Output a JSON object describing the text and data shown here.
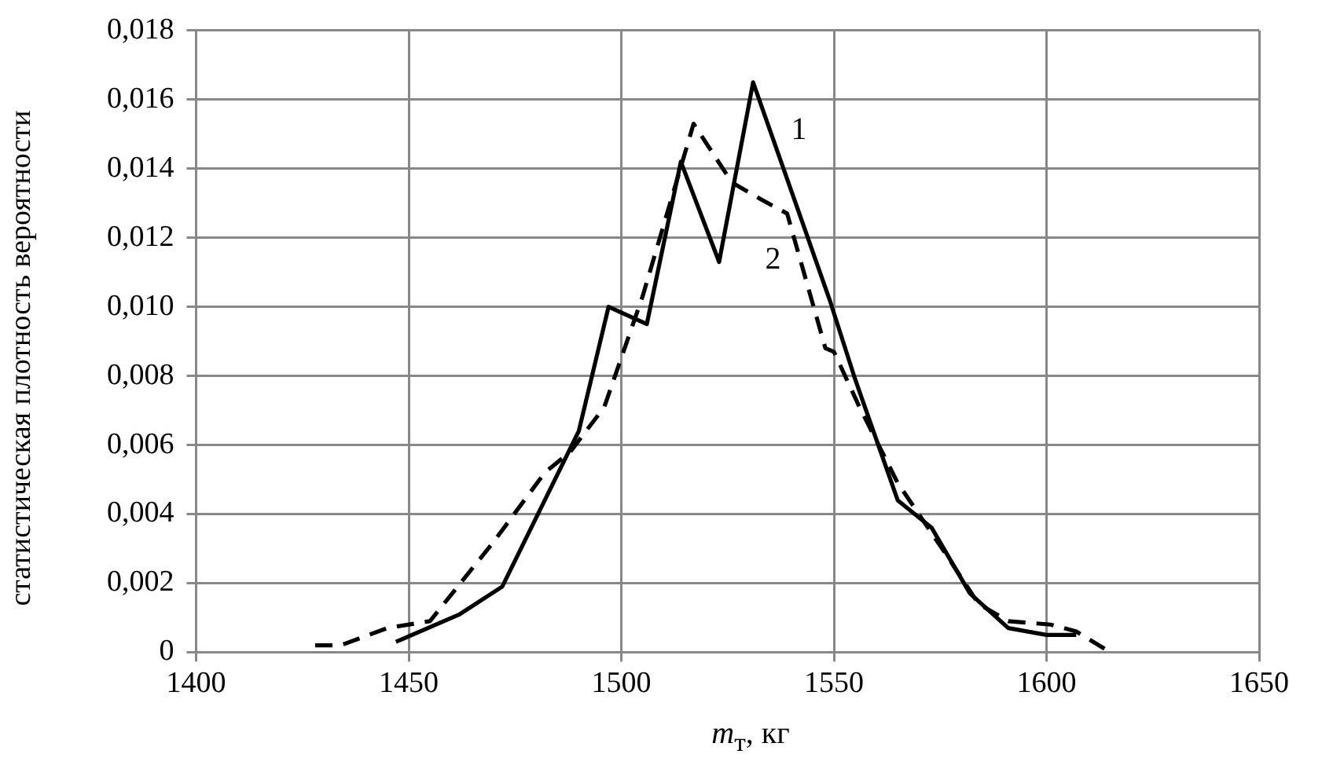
{
  "chart_data": {
    "type": "line",
    "xlabel": "m$_{т}$, кг",
    "ylabel": "статистическая плотность вероятности",
    "xlim": [
      1400,
      1650
    ],
    "xticks": [
      1400,
      1450,
      1500,
      1550,
      1600,
      1650
    ],
    "ylim": [
      0,
      0.018
    ],
    "yticks": [
      0,
      {
        "value": 0.002,
        "label": "0,002"
      },
      {
        "value": 0.004,
        "label": "0,004"
      },
      {
        "value": 0.006,
        "label": "0,006"
      },
      {
        "value": 0.008,
        "label": "0,008"
      },
      {
        "value": 0.01,
        "label": "0,010"
      },
      {
        "value": 0.012,
        "label": "0,012"
      },
      {
        "value": 0.014,
        "label": "0,014"
      },
      {
        "value": 0.016,
        "label": "0,016"
      },
      {
        "value": 0.018,
        "label": "0,018"
      }
    ],
    "grid": true,
    "legend": false,
    "marker": "none",
    "series": [
      {
        "name": "1",
        "color": "#000000",
        "line_style": "solid",
        "x": [
          1447,
          1462,
          1472,
          1490,
          1497,
          1506,
          1514,
          1523,
          1531,
          1549,
          1555,
          1565,
          1573,
          1582,
          1591,
          1600,
          1607
        ],
        "values": [
          0.0003,
          0.0011,
          0.0019,
          0.0064,
          0.01,
          0.0095,
          0.0142,
          0.0113,
          0.0165,
          0.0102,
          0.0079,
          0.0044,
          0.0036,
          0.0017,
          0.0007,
          0.0005,
          0.0005
        ]
      },
      {
        "name": "2",
        "color": "#000000",
        "line_style": "dashed",
        "x": [
          1428,
          1434,
          1445,
          1455,
          1470,
          1482,
          1488,
          1496,
          1505,
          1517,
          1526,
          1533,
          1539,
          1548,
          1550,
          1556,
          1565,
          1576,
          1584,
          1591,
          1601,
          1607,
          1615
        ],
        "values": [
          0.0002,
          0.0002,
          0.0007,
          0.0009,
          0.0032,
          0.0052,
          0.0058,
          0.0071,
          0.0103,
          0.0153,
          0.0136,
          0.0131,
          0.0127,
          0.0088,
          0.0087,
          0.0071,
          0.0049,
          0.0029,
          0.0014,
          0.0009,
          0.0008,
          0.0006,
          0
        ]
      }
    ]
  }
}
